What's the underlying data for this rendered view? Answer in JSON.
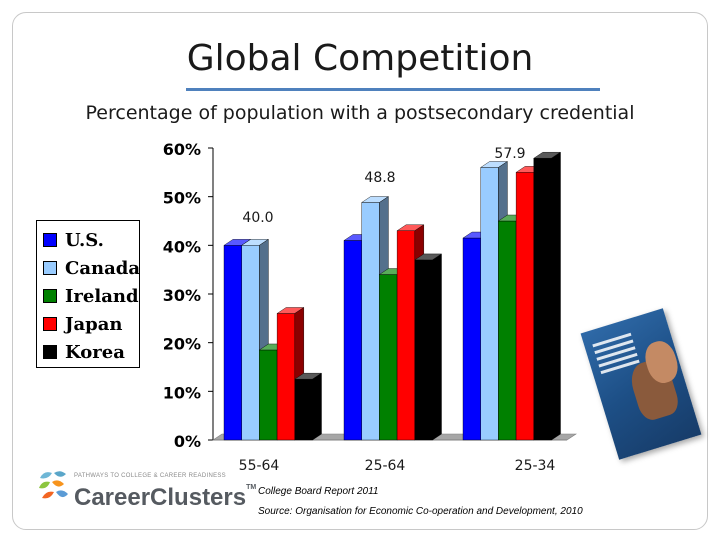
{
  "slide": {
    "title": "Global Competition",
    "brand": {
      "tagline": "PATHWAYS TO COLLEGE & CAREER READINESS",
      "name": "CareerClusters",
      "trademark": "TM"
    },
    "notes": [
      "College Board Report 2011",
      "Source: Organisation for Economic Co-operation and Development, 2010"
    ],
    "book_icon": "report-cover-icon",
    "logo_icon": "career-clusters-logo-icon"
  },
  "chart_data": {
    "type": "bar",
    "title": "Percentage of population with a postsecondary credential",
    "categories": [
      "55-64",
      "25-64",
      "25-34"
    ],
    "series": [
      {
        "name": "U.S.",
        "color": "#0000ff",
        "values": [
          40.0,
          41.0,
          41.5
        ]
      },
      {
        "name": "Canada",
        "color": "#99ccff",
        "values": [
          40.0,
          48.8,
          56.0
        ]
      },
      {
        "name": "Ireland",
        "color": "#008000",
        "values": [
          18.5,
          34.0,
          45.0
        ]
      },
      {
        "name": "Japan",
        "color": "#ff0000",
        "values": [
          26.0,
          43.0,
          55.0
        ]
      },
      {
        "name": "Korea",
        "color": "#000000",
        "values": [
          12.5,
          37.0,
          57.9
        ]
      }
    ],
    "data_labels": [
      {
        "category": "55-64",
        "text": "40.0"
      },
      {
        "category": "25-64",
        "text": "48.8"
      },
      {
        "category": "25-34",
        "text": "57.9"
      }
    ],
    "yticks": [
      "0%",
      "10%",
      "20%",
      "30%",
      "40%",
      "50%",
      "60%"
    ],
    "ylim": [
      0,
      60
    ],
    "legend_position": "left",
    "grid": false,
    "style": "3d-bar"
  }
}
